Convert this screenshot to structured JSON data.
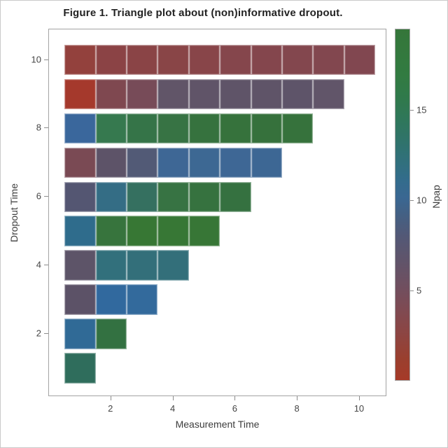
{
  "title": "Figure 1. Triangle plot about (non)informative dropout.",
  "chart_data": {
    "type": "heatmap",
    "title": "Figure 1. Triangle plot about (non)informative dropout.",
    "xlabel": "Measurement Time",
    "ylabel": "Dropout Time",
    "x_ticks": [
      2,
      4,
      6,
      8,
      10
    ],
    "y_ticks": [
      2,
      4,
      6,
      8,
      10
    ],
    "xlim": [
      0,
      10.88
    ],
    "ylim": [
      0.16,
      10.89
    ],
    "grid": false,
    "legend_position": "right",
    "legend": {
      "label": "Npap",
      "ticks": [
        5,
        10,
        15
      ],
      "min": 0,
      "max": 19.5,
      "gradient_stops": [
        {
          "pos": 0.0,
          "color": "#A63A28"
        },
        {
          "pos": 0.06,
          "color": "#9A3F2E"
        },
        {
          "pos": 0.13,
          "color": "#8D4542"
        },
        {
          "pos": 0.2,
          "color": "#7F4A52"
        },
        {
          "pos": 0.27,
          "color": "#6F4F60"
        },
        {
          "pos": 0.34,
          "color": "#60546A"
        },
        {
          "pos": 0.41,
          "color": "#535876"
        },
        {
          "pos": 0.47,
          "color": "#446083"
        },
        {
          "pos": 0.52,
          "color": "#3A6792"
        },
        {
          "pos": 0.57,
          "color": "#336C8C"
        },
        {
          "pos": 0.62,
          "color": "#31707D"
        },
        {
          "pos": 0.68,
          "color": "#30736B"
        },
        {
          "pos": 0.74,
          "color": "#2F775B"
        },
        {
          "pos": 0.8,
          "color": "#30794C"
        },
        {
          "pos": 0.87,
          "color": "#327B41"
        },
        {
          "pos": 1.0,
          "color": "#35763A"
        }
      ]
    },
    "rows": [
      {
        "dropout_time": 10,
        "cells": [
          {
            "measurement_time": 1,
            "npap": 2,
            "color": "#93413D"
          },
          {
            "measurement_time": 2,
            "npap": 3,
            "color": "#8B4345"
          },
          {
            "measurement_time": 3,
            "npap": 3,
            "color": "#8A4446"
          },
          {
            "measurement_time": 4,
            "npap": 3,
            "color": "#894547"
          },
          {
            "measurement_time": 5,
            "npap": 3,
            "color": "#884549"
          },
          {
            "measurement_time": 6,
            "npap": 4,
            "color": "#85464C"
          },
          {
            "measurement_time": 7,
            "npap": 4,
            "color": "#84464D"
          },
          {
            "measurement_time": 8,
            "npap": 4,
            "color": "#83474E"
          },
          {
            "measurement_time": 9,
            "npap": 4,
            "color": "#82474F"
          },
          {
            "measurement_time": 10,
            "npap": 4,
            "color": "#814750"
          }
        ]
      },
      {
        "dropout_time": 9,
        "cells": [
          {
            "measurement_time": 1,
            "npap": 1,
            "color": "#A5392C"
          },
          {
            "measurement_time": 2,
            "npap": 4,
            "color": "#7F4850"
          },
          {
            "measurement_time": 3,
            "npap": 5,
            "color": "#774B58"
          },
          {
            "measurement_time": 4,
            "npap": 7,
            "color": "#615568"
          },
          {
            "measurement_time": 5,
            "npap": 7,
            "color": "#605468"
          },
          {
            "measurement_time": 6,
            "npap": 7,
            "color": "#5F5468"
          },
          {
            "measurement_time": 7,
            "npap": 7,
            "color": "#5F5468"
          },
          {
            "measurement_time": 8,
            "npap": 7,
            "color": "#5E5469"
          },
          {
            "measurement_time": 9,
            "npap": 7,
            "color": "#615569"
          }
        ]
      },
      {
        "dropout_time": 8,
        "cells": [
          {
            "measurement_time": 1,
            "npap": 10,
            "color": "#3A679C"
          },
          {
            "measurement_time": 2,
            "npap": 15,
            "color": "#36794F"
          },
          {
            "measurement_time": 3,
            "npap": 16,
            "color": "#357448"
          },
          {
            "measurement_time": 4,
            "npap": 16,
            "color": "#377344"
          },
          {
            "measurement_time": 5,
            "npap": 16,
            "color": "#36723E"
          },
          {
            "measurement_time": 6,
            "npap": 16,
            "color": "#36723C"
          },
          {
            "measurement_time": 7,
            "npap": 16,
            "color": "#36713C"
          },
          {
            "measurement_time": 8,
            "npap": 16,
            "color": "#36723C"
          }
        ]
      },
      {
        "dropout_time": 7,
        "cells": [
          {
            "measurement_time": 1,
            "npap": 5,
            "color": "#7A4A54"
          },
          {
            "measurement_time": 2,
            "npap": 7,
            "color": "#5D5368"
          },
          {
            "measurement_time": 3,
            "npap": 8,
            "color": "#525A76"
          },
          {
            "measurement_time": 4,
            "npap": 10,
            "color": "#3E6795"
          },
          {
            "measurement_time": 5,
            "npap": 10,
            "color": "#3D6893"
          },
          {
            "measurement_time": 6,
            "npap": 10,
            "color": "#3E6795"
          },
          {
            "measurement_time": 7,
            "npap": 10,
            "color": "#3D6794"
          }
        ]
      },
      {
        "dropout_time": 6,
        "cells": [
          {
            "measurement_time": 1,
            "npap": 8,
            "color": "#545672"
          },
          {
            "measurement_time": 2,
            "npap": 11,
            "color": "#346D85"
          },
          {
            "measurement_time": 3,
            "npap": 13,
            "color": "#357060"
          },
          {
            "measurement_time": 4,
            "npap": 16,
            "color": "#377343"
          },
          {
            "measurement_time": 5,
            "npap": 16,
            "color": "#36723F"
          },
          {
            "measurement_time": 6,
            "npap": 16,
            "color": "#357140"
          }
        ]
      },
      {
        "dropout_time": 5,
        "cells": [
          {
            "measurement_time": 1,
            "npap": 11,
            "color": "#2F6C8C"
          },
          {
            "measurement_time": 2,
            "npap": 16,
            "color": "#37743D"
          },
          {
            "measurement_time": 3,
            "npap": 17,
            "color": "#377734"
          },
          {
            "measurement_time": 4,
            "npap": 17,
            "color": "#377735"
          },
          {
            "measurement_time": 5,
            "npap": 17,
            "color": "#377636"
          }
        ]
      },
      {
        "dropout_time": 4,
        "cells": [
          {
            "measurement_time": 1,
            "npap": 7,
            "color": "#5D5468"
          },
          {
            "measurement_time": 2,
            "npap": 12,
            "color": "#32707C"
          },
          {
            "measurement_time": 3,
            "npap": 12,
            "color": "#336F7A"
          },
          {
            "measurement_time": 4,
            "npap": 12,
            "color": "#336F7A"
          }
        ]
      },
      {
        "dropout_time": 3,
        "cells": [
          {
            "measurement_time": 1,
            "npap": 7,
            "color": "#5C5267"
          },
          {
            "measurement_time": 2,
            "npap": 10,
            "color": "#31699E"
          },
          {
            "measurement_time": 3,
            "npap": 10,
            "color": "#336A9C"
          }
        ]
      },
      {
        "dropout_time": 2,
        "cells": [
          {
            "measurement_time": 1,
            "npap": 10,
            "color": "#306A96"
          },
          {
            "measurement_time": 2,
            "npap": 15,
            "color": "#337141"
          }
        ]
      },
      {
        "dropout_time": 1,
        "cells": [
          {
            "measurement_time": 1,
            "npap": 13,
            "color": "#2F6D5C"
          }
        ]
      }
    ]
  }
}
